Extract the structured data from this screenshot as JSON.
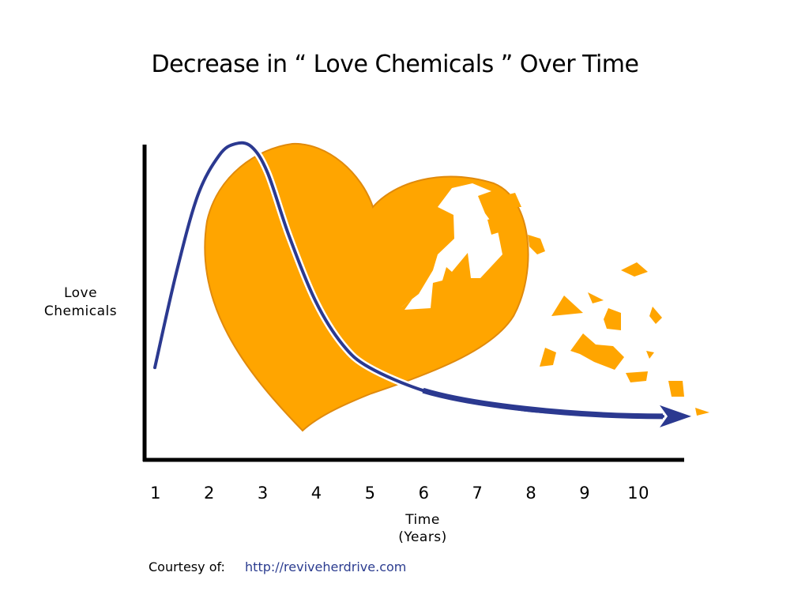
{
  "chart_data": {
    "type": "line",
    "title": "Decrease in “ Love Chemicals ” Over Time",
    "ylabel": [
      "Love",
      "Chemicals"
    ],
    "xlabel": [
      "Time",
      "(Years)"
    ],
    "x_ticks": [
      "1",
      "2",
      "3",
      "4",
      "5",
      "6",
      "7",
      "8",
      "9",
      "10"
    ],
    "xlim": [
      1,
      11
    ],
    "ylim": [
      0,
      1
    ],
    "grid": false,
    "series": [
      {
        "x": [
          1,
          1.4,
          1.8,
          2.2,
          2.5,
          2.8,
          3.1,
          3.5,
          4,
          4.5,
          5,
          6,
          7,
          8,
          9,
          10,
          11
        ],
        "y": [
          0.22,
          0.55,
          0.82,
          0.96,
          1.0,
          0.99,
          0.9,
          0.68,
          0.45,
          0.3,
          0.22,
          0.14,
          0.1,
          0.07,
          0.06,
          0.05,
          0.05
        ],
        "color": "#2b3990"
      }
    ],
    "heart_color": "#ffa500"
  },
  "footer": {
    "courtesy_label": "Courtesy of:",
    "url": "http://reviveherdrive.com"
  }
}
